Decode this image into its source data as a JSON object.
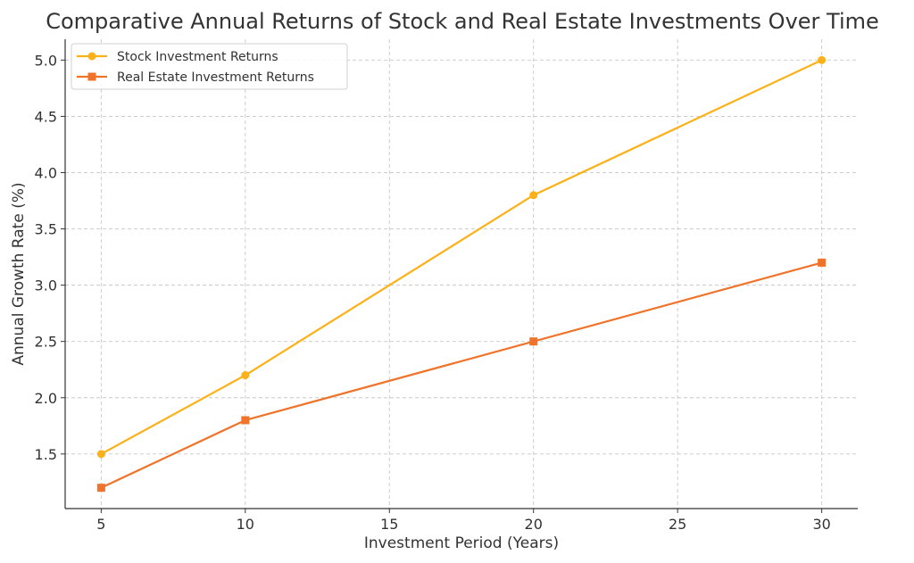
{
  "chart_data": {
    "type": "line",
    "title": "Comparative Annual Returns of Stock and Real Estate Investments Over Time",
    "xlabel": "Investment Period (Years)",
    "ylabel": "Annual Growth Rate (%)",
    "x": [
      5,
      10,
      20,
      30
    ],
    "xlim": [
      3.75,
      31.25
    ],
    "ylim": [
      1.015,
      5.185
    ],
    "xticks": [
      5,
      10,
      15,
      20,
      25,
      30
    ],
    "xtick_labels": [
      "5",
      "10",
      "15",
      "20",
      "25",
      "30"
    ],
    "yticks": [
      1.5,
      2.0,
      2.5,
      3.0,
      3.5,
      4.0,
      4.5,
      5.0
    ],
    "ytick_labels": [
      "1.5",
      "2.0",
      "2.5",
      "3.0",
      "3.5",
      "4.0",
      "4.5",
      "5.0"
    ],
    "grid": true,
    "legend_position": "top-left",
    "series": [
      {
        "name": "Stock Investment Returns",
        "values": [
          1.5,
          2.2,
          3.8,
          5.0
        ],
        "color": "#FBB117",
        "marker": "circle"
      },
      {
        "name": "Real Estate Investment Returns",
        "values": [
          1.2,
          1.8,
          2.5,
          3.2
        ],
        "color": "#F0732A",
        "marker": "square"
      }
    ]
  }
}
